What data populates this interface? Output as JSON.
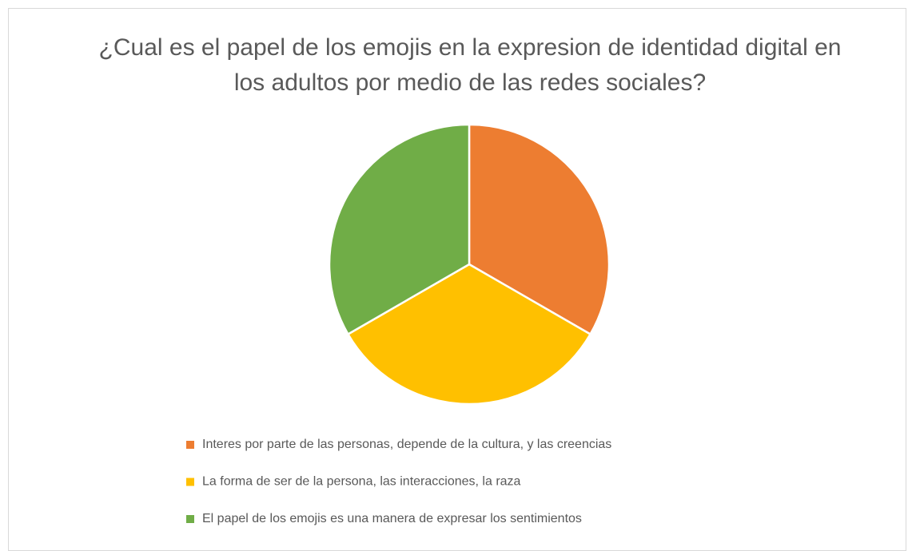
{
  "chart_data": {
    "type": "pie",
    "title": "¿Cual es el papel de los emojis en la expresion de identidad digital en los adultos por medio de las redes sociales?",
    "categories": [
      "Interes por parte de las personas, depende de la cultura, y las creencias",
      "La forma de ser de la persona, las interacciones, la raza",
      "El papel de los emojis es una manera de expresar los sentimientos"
    ],
    "values": [
      1,
      1,
      1
    ],
    "colors": [
      "#ed7d31",
      "#ffc000",
      "#70ad47"
    ],
    "legend": "bottom"
  }
}
